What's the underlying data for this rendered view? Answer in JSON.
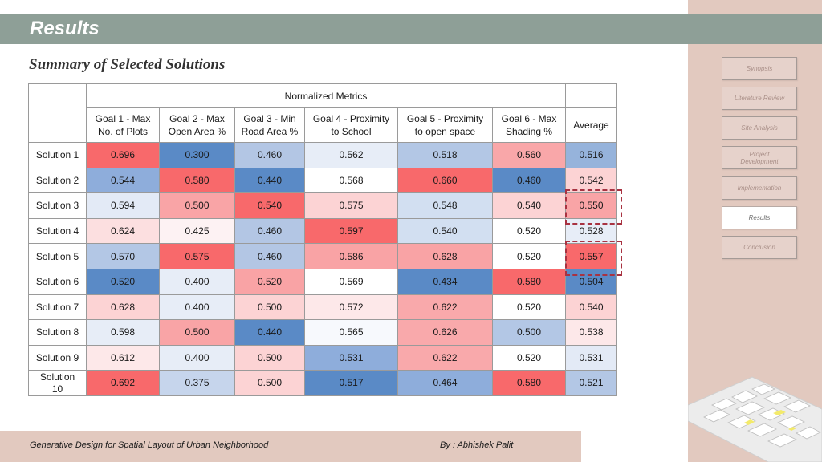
{
  "header": {
    "title": "Results"
  },
  "subtitle": "Summary of Selected Solutions",
  "table": {
    "group_header": "Normalized Metrics",
    "columns": [
      "Goal 1 - Max\nNo. of Plots",
      "Goal 2 - Max\nOpen Area %",
      "Goal 3 - Min\nRoad Area %",
      "Goal 4 - Proximity\nto School",
      "Goal 5 - Proximity\nto open space",
      "Goal 6 - Max\nShading %"
    ],
    "average_header": "Average",
    "rows": [
      {
        "label": "Solution 1",
        "values": [
          "0.696",
          "0.300",
          "0.460",
          "0.562",
          "0.518",
          "0.560"
        ],
        "average": "0.516"
      },
      {
        "label": "Solution 2",
        "values": [
          "0.544",
          "0.580",
          "0.440",
          "0.568",
          "0.660",
          "0.460"
        ],
        "average": "0.542"
      },
      {
        "label": "Solution 3",
        "values": [
          "0.594",
          "0.500",
          "0.540",
          "0.575",
          "0.548",
          "0.540"
        ],
        "average": "0.550"
      },
      {
        "label": "Solution 4",
        "values": [
          "0.624",
          "0.425",
          "0.460",
          "0.597",
          "0.540",
          "0.520"
        ],
        "average": "0.528"
      },
      {
        "label": "Solution 5",
        "values": [
          "0.570",
          "0.575",
          "0.460",
          "0.586",
          "0.628",
          "0.520"
        ],
        "average": "0.557"
      },
      {
        "label": "Solution 6",
        "values": [
          "0.520",
          "0.400",
          "0.520",
          "0.569",
          "0.434",
          "0.580"
        ],
        "average": "0.504"
      },
      {
        "label": "Solution 7",
        "values": [
          "0.628",
          "0.400",
          "0.500",
          "0.572",
          "0.622",
          "0.520"
        ],
        "average": "0.540"
      },
      {
        "label": "Solution 8",
        "values": [
          "0.598",
          "0.500",
          "0.440",
          "0.565",
          "0.626",
          "0.500"
        ],
        "average": "0.538"
      },
      {
        "label": "Solution 9",
        "values": [
          "0.612",
          "0.400",
          "0.500",
          "0.531",
          "0.622",
          "0.520"
        ],
        "average": "0.531"
      },
      {
        "label": "Solution\n10",
        "values": [
          "0.692",
          "0.375",
          "0.500",
          "0.517",
          "0.464",
          "0.580"
        ],
        "average": "0.521"
      }
    ],
    "cell_colors": [
      [
        "#f8696b",
        "#5a8ac6",
        "#b3c6e4",
        "#e7edf7",
        "#b3c7e5",
        "#f9a7a9",
        "#96b3db"
      ],
      [
        "#8eaddb",
        "#f8696b",
        "#5a8ac6",
        "#ffffff",
        "#f8696b",
        "#5a8ac6",
        "#fcd3d4"
      ],
      [
        "#e3eaf6",
        "#f9a4a6",
        "#f8696b",
        "#fcd3d4",
        "#d2dff1",
        "#fcd3d4",
        "#f9a4a6"
      ],
      [
        "#fcdfe0",
        "#fdf2f3",
        "#b3c6e4",
        "#f8696b",
        "#d2dff1",
        "#ffffff",
        "#e7edf7"
      ],
      [
        "#b3c7e5",
        "#f8696b",
        "#b3c6e4",
        "#f9a3a5",
        "#f9a3a5",
        "#ffffff",
        "#f8696b"
      ],
      [
        "#5a8ac6",
        "#e7edf7",
        "#f9a3a5",
        "#ffffff",
        "#5a8ac6",
        "#f8696b",
        "#5a8ac6"
      ],
      [
        "#fcd3d4",
        "#e7edf7",
        "#fcd3d4",
        "#fde8e9",
        "#f9a9ab",
        "#ffffff",
        "#fcd3d4"
      ],
      [
        "#e7edf7",
        "#f9a4a6",
        "#5a8ac6",
        "#f7f9fd",
        "#f9a9ab",
        "#b3c7e5",
        "#fde8e9"
      ],
      [
        "#fde8e9",
        "#e7edf7",
        "#fcd3d4",
        "#8eaddb",
        "#f9a9ab",
        "#ffffff",
        "#e3eaf6"
      ],
      [
        "#f8696b",
        "#c6d5ec",
        "#fcd3d4",
        "#5a8ac6",
        "#8eaddb",
        "#f8696b",
        "#b3c7e5"
      ]
    ]
  },
  "nav": {
    "items": [
      "Synopsis",
      "Literature Review",
      "Site Analysis",
      "Project\nDevelopment",
      "Implementation",
      "Results",
      "Conclusion"
    ],
    "active_index": 5
  },
  "footer": {
    "left": "Generative Design for Spatial Layout of Urban Neighborhood",
    "right": "By : Abhishek Palit"
  },
  "colors": {
    "header": "#8e9f97",
    "panel": "#e2c9bf",
    "highlight": "#a83241"
  }
}
